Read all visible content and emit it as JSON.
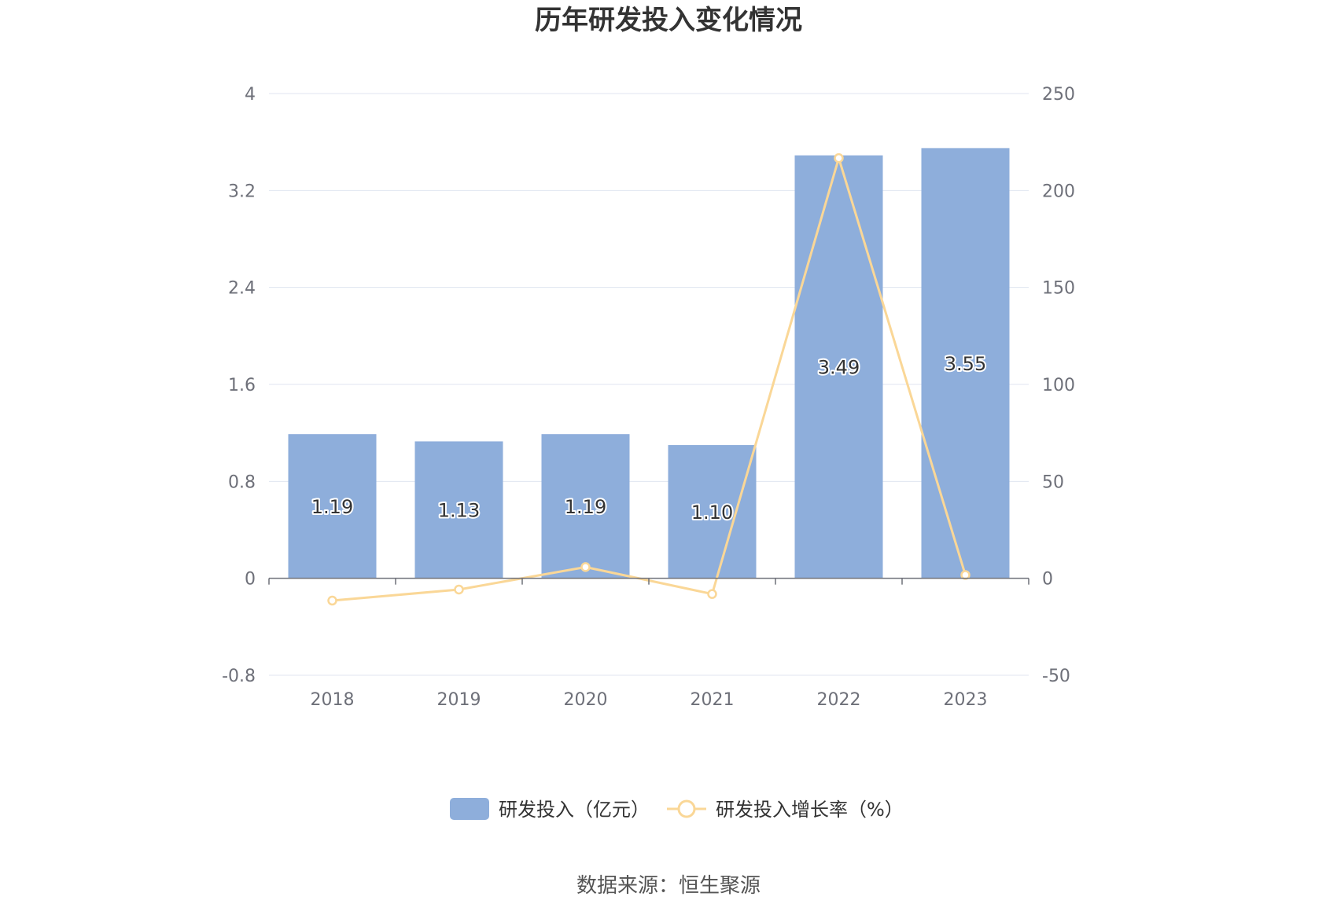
{
  "chart_data": {
    "type": "bar",
    "title": "历年研发投入变化情况",
    "categories": [
      "2018",
      "2019",
      "2020",
      "2021",
      "2022",
      "2023"
    ],
    "series": [
      {
        "name": "研发投入（亿元）",
        "type": "bar",
        "axis": "left",
        "values": [
          1.19,
          1.13,
          1.19,
          1.1,
          3.49,
          3.55
        ],
        "labels": [
          "1.19",
          "1.13",
          "1.19",
          "1.10",
          "3.49",
          "3.55"
        ],
        "color": "#8eaedb"
      },
      {
        "name": "研发投入增长率（%）",
        "type": "line",
        "axis": "right",
        "values": [
          -11.5,
          -5.8,
          5.8,
          -8.1,
          216.7,
          1.7
        ],
        "color": "#fad797"
      }
    ],
    "yaxis_left": {
      "min": -0.8,
      "max": 4,
      "ticks": [
        "4",
        "3.2",
        "2.4",
        "1.6",
        "0.8",
        "0",
        "-0.8"
      ]
    },
    "yaxis_right": {
      "min": -50,
      "max": 250,
      "ticks": [
        "250",
        "200",
        "150",
        "100",
        "50",
        "0",
        "-50"
      ]
    },
    "grid": true,
    "legend_position": "bottom"
  },
  "source_text": "数据来源：恒生聚源"
}
